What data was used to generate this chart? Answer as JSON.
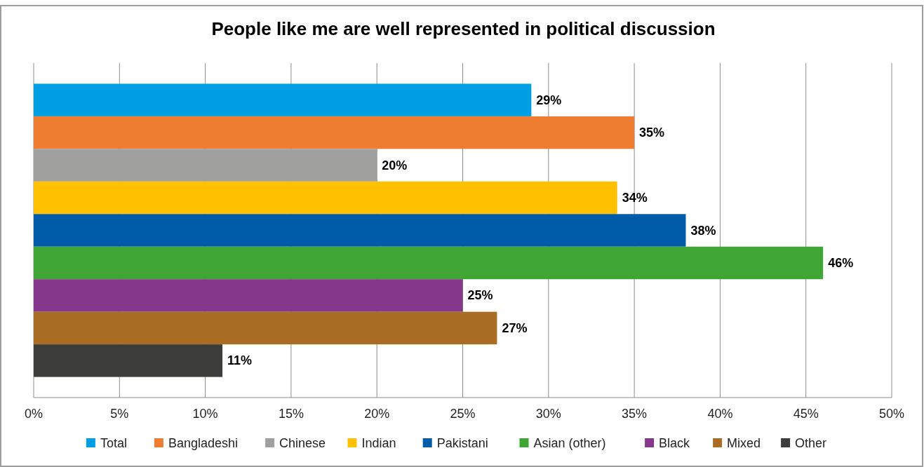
{
  "chart_data": {
    "type": "bar",
    "orientation": "horizontal",
    "title": "People like me are well represented in political discussion",
    "categories": [
      null
    ],
    "series": [
      {
        "name": "Total",
        "color": "#009fe3",
        "values": [
          29
        ],
        "value_labels": [
          "29%"
        ]
      },
      {
        "name": "Bangladeshi",
        "color": "#ef7d31",
        "values": [
          35
        ],
        "value_labels": [
          "35%"
        ]
      },
      {
        "name": "Chinese",
        "color": "#a0a09f",
        "values": [
          20
        ],
        "value_labels": [
          "20%"
        ]
      },
      {
        "name": "Indian",
        "color": "#ffc000",
        "values": [
          34
        ],
        "value_labels": [
          "34%"
        ]
      },
      {
        "name": "Pakistani",
        "color": "#005ca9",
        "values": [
          38
        ],
        "value_labels": [
          "38%"
        ]
      },
      {
        "name": "Asian (other)",
        "color": "#3fa535",
        "values": [
          46
        ],
        "value_labels": [
          "46%"
        ]
      },
      {
        "name": "Black",
        "color": "#84378b",
        "values": [
          25
        ],
        "value_labels": [
          "25%"
        ]
      },
      {
        "name": "Mixed",
        "color": "#a96e24",
        "values": [
          27
        ],
        "value_labels": [
          "27%"
        ]
      },
      {
        "name": "Other",
        "color": "#3c3c3b",
        "values": [
          11
        ],
        "value_labels": [
          "11%"
        ]
      }
    ],
    "xlim": [
      0,
      50
    ],
    "xticks": [
      {
        "value": 0,
        "label": "0%"
      },
      {
        "value": 5,
        "label": "5%"
      },
      {
        "value": 10,
        "label": "10%"
      },
      {
        "value": 15,
        "label": "15%"
      },
      {
        "value": 20,
        "label": "20%"
      },
      {
        "value": 25,
        "label": "25%"
      },
      {
        "value": 30,
        "label": "30%"
      },
      {
        "value": 35,
        "label": "35%"
      },
      {
        "value": 40,
        "label": "40%"
      },
      {
        "value": 45,
        "label": "45%"
      },
      {
        "value": 50,
        "label": "50%"
      }
    ],
    "grid": "x",
    "legend": "bottom"
  }
}
